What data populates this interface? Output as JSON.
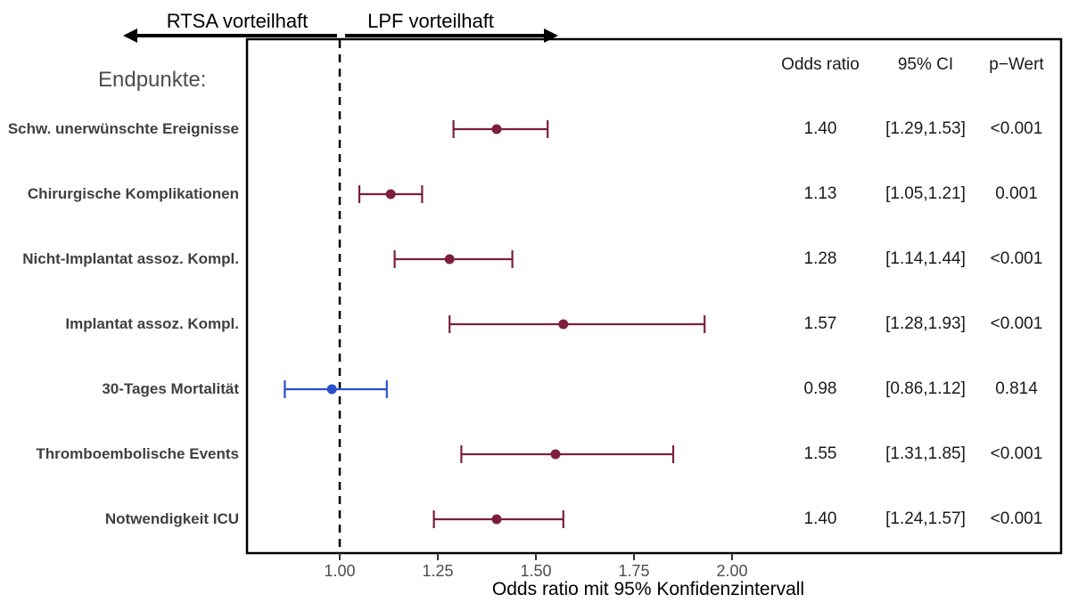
{
  "annotations": {
    "left_arrow_label": "RTSA vorteilhaft",
    "right_arrow_label": "LPF vorteilhaft"
  },
  "labels": {
    "endpoints_heading": "Endpunkte:"
  },
  "table": {
    "headers": [
      "Odds ratio",
      "95% CI",
      "p−Wert"
    ]
  },
  "axis": {
    "title": "Odds ratio mit 95% Konfidenzintervall"
  },
  "colors": {
    "effect": "#7d1f3c",
    "null_effect": "#2a4fc9",
    "reference_line": "#000000",
    "panel_border": "#000000"
  },
  "chart_data": {
    "type": "scatter",
    "subtype": "forest-plot",
    "xlabel": "Odds ratio mit 95% Konfidenzintervall",
    "xlim": [
      0.76,
      2.84
    ],
    "reference_line": 1.0,
    "x_ticks": [
      1.0,
      1.25,
      1.5,
      1.75,
      2.0
    ],
    "x_tick_labels": [
      "1.00",
      "1.25",
      "1.50",
      "1.75",
      "2.00"
    ],
    "grid": "off",
    "rows": [
      {
        "label": "Schw. unerwünschte Ereignisse",
        "or": 1.4,
        "ci_low": 1.29,
        "ci_high": 1.53,
        "or_text": "1.40",
        "ci_text": "[1.29,1.53]",
        "p_text": "<0.001",
        "color_key": "effect"
      },
      {
        "label": "Chirurgische Komplikationen",
        "or": 1.13,
        "ci_low": 1.05,
        "ci_high": 1.21,
        "or_text": "1.13",
        "ci_text": "[1.05,1.21]",
        "p_text": "0.001",
        "color_key": "effect"
      },
      {
        "label": "Nicht-Implantat assoz. Kompl.",
        "or": 1.28,
        "ci_low": 1.14,
        "ci_high": 1.44,
        "or_text": "1.28",
        "ci_text": "[1.14,1.44]",
        "p_text": "<0.001",
        "color_key": "effect"
      },
      {
        "label": "Implantat assoz. Kompl.",
        "or": 1.57,
        "ci_low": 1.28,
        "ci_high": 1.93,
        "or_text": "1.57",
        "ci_text": "[1.28,1.93]",
        "p_text": "<0.001",
        "color_key": "effect"
      },
      {
        "label": "30-Tages Mortalität",
        "or": 0.98,
        "ci_low": 0.86,
        "ci_high": 1.12,
        "or_text": "0.98",
        "ci_text": "[0.86,1.12]",
        "p_text": "0.814",
        "color_key": "null_effect"
      },
      {
        "label": "Thromboembolische Events",
        "or": 1.55,
        "ci_low": 1.31,
        "ci_high": 1.85,
        "or_text": "1.55",
        "ci_text": "[1.31,1.85]",
        "p_text": "<0.001",
        "color_key": "effect"
      },
      {
        "label": "Notwendigkeit ICU",
        "or": 1.4,
        "ci_low": 1.24,
        "ci_high": 1.57,
        "or_text": "1.40",
        "ci_text": "[1.24,1.57]",
        "p_text": "<0.001",
        "color_key": "effect"
      }
    ]
  }
}
